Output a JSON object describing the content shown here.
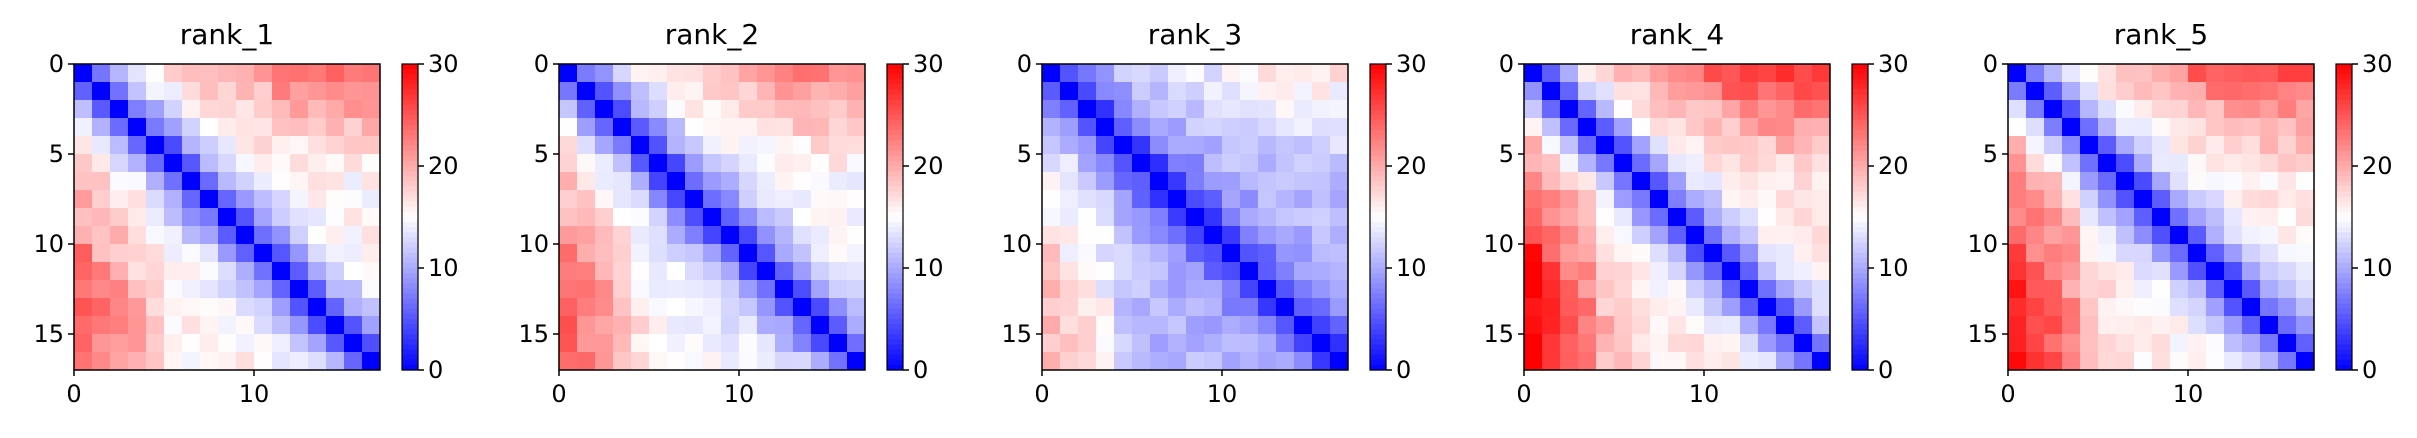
{
  "chart_data": [
    {
      "type": "heatmap",
      "title": "rank_1",
      "size": 17,
      "vmin": 0,
      "vmax": 30,
      "colormap": "bwr",
      "x_ticks": [
        0,
        10
      ],
      "y_ticks": [
        0,
        5,
        10,
        15
      ],
      "colorbar_ticks": [
        0,
        10,
        20,
        30
      ],
      "profile": {
        "near_peak": 22,
        "near_width": 3.2,
        "near_decay": 4.2,
        "far_boost": 8,
        "bottom_left": 0.2
      }
    },
    {
      "type": "heatmap",
      "title": "rank_2",
      "size": 17,
      "vmin": 0,
      "vmax": 30,
      "colormap": "bwr",
      "x_ticks": [
        0,
        10
      ],
      "y_ticks": [
        0,
        5,
        10,
        15
      ],
      "colorbar_ticks": [
        0,
        10,
        20,
        30
      ],
      "profile": {
        "near_peak": 21,
        "near_width": 3.3,
        "near_decay": 4.0,
        "far_boost": 8,
        "bottom_left": 0.3
      }
    },
    {
      "type": "heatmap",
      "title": "rank_3",
      "size": 17,
      "vmin": 0,
      "vmax": 30,
      "colormap": "bwr",
      "x_ticks": [
        0,
        10
      ],
      "y_ticks": [
        0,
        5,
        10,
        15
      ],
      "colorbar_ticks": [
        0,
        10,
        20,
        30
      ],
      "profile": {
        "near_peak": 15,
        "near_width": 3.0,
        "near_decay": 3.2,
        "far_boost": 6,
        "bottom_left": 0.7
      }
    },
    {
      "type": "heatmap",
      "title": "rank_4",
      "size": 17,
      "vmin": 0,
      "vmax": 30,
      "colormap": "bwr",
      "x_ticks": [
        0,
        10
      ],
      "y_ticks": [
        0,
        5,
        10,
        15
      ],
      "colorbar_ticks": [
        0,
        10,
        20,
        30
      ],
      "profile": {
        "near_peak": 24,
        "near_width": 3.4,
        "near_decay": 4.5,
        "far_boost": 10,
        "bottom_left": 0.5
      }
    },
    {
      "type": "heatmap",
      "title": "rank_5",
      "size": 17,
      "vmin": 0,
      "vmax": 30,
      "colormap": "bwr",
      "x_ticks": [
        0,
        10
      ],
      "y_ticks": [
        0,
        5,
        10,
        15
      ],
      "colorbar_ticks": [
        0,
        10,
        20,
        30
      ],
      "profile": {
        "near_peak": 23,
        "near_width": 3.3,
        "near_decay": 4.3,
        "far_boost": 9,
        "bottom_left": 0.6
      }
    }
  ]
}
